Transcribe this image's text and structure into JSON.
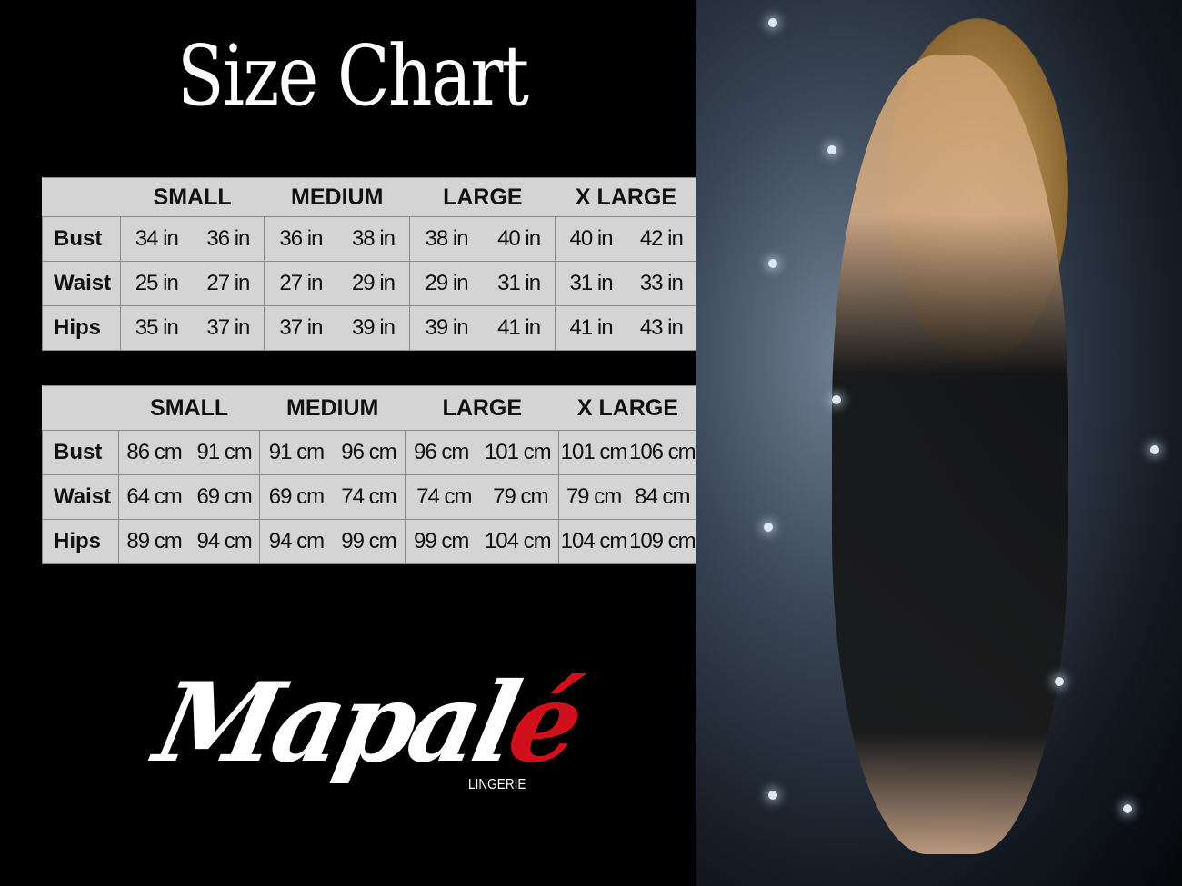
{
  "title": "Size Chart",
  "sizes": [
    "SMALL",
    "MEDIUM",
    "LARGE",
    "X LARGE"
  ],
  "inches_table": {
    "rows": [
      {
        "label": "Bust",
        "values": [
          "34 in",
          "36 in",
          "36 in",
          "38 in",
          "38 in",
          "40 in",
          "40 in",
          "42 in"
        ]
      },
      {
        "label": "Waist",
        "values": [
          "25 in",
          "27 in",
          "27 in",
          "29 in",
          "29 in",
          "31 in",
          "31 in",
          "33 in"
        ]
      },
      {
        "label": "Hips",
        "values": [
          "35 in",
          "37 in",
          "37 in",
          "39 in",
          "39 in",
          "41 in",
          "41 in",
          "43 in"
        ]
      }
    ]
  },
  "cm_table": {
    "rows": [
      {
        "label": "Bust",
        "values": [
          "86 cm",
          "91 cm",
          "91 cm",
          "96 cm",
          "96 cm",
          "101 cm",
          "101 cm",
          "106 cm"
        ]
      },
      {
        "label": "Waist",
        "values": [
          "64 cm",
          "69 cm",
          "69 cm",
          "74 cm",
          "74 cm",
          "79  cm",
          "79 cm",
          "84 cm"
        ]
      },
      {
        "label": "Hips",
        "values": [
          "89 cm",
          "94 cm",
          "94 cm",
          "99 cm",
          "99 cm",
          "104 cm",
          "104 cm",
          "109 cm"
        ]
      }
    ]
  },
  "brand": {
    "name": "Mapalé",
    "name_main": "Mapal",
    "name_accent": "é",
    "tagline": "LINGERIE",
    "accent_color": "#d0111b"
  },
  "colors": {
    "background": "#000000",
    "table_bg": "#d4d4d4"
  }
}
